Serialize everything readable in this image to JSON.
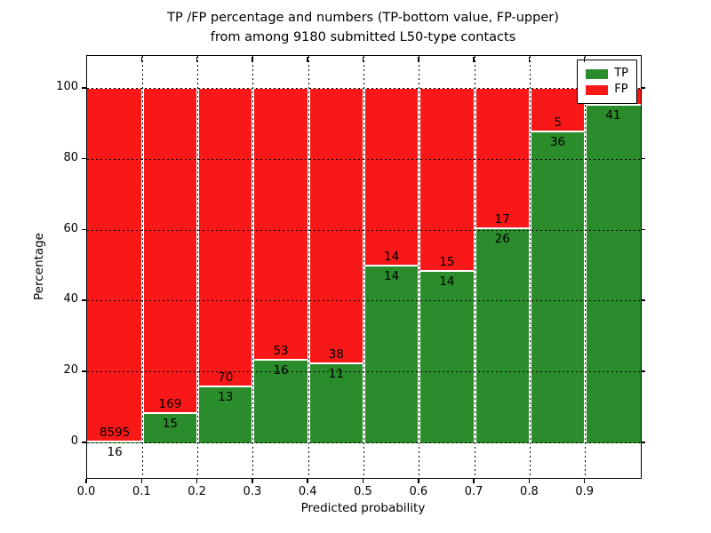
{
  "title": {
    "line1": "TP /FP percentage and numbers (TP-bottom value, FP-upper)",
    "line2": "from among 9180 submitted L50-type contacts"
  },
  "axes": {
    "xlabel": "Predicted probability",
    "ylabel": "Percentage",
    "x_ticks": [
      "0.0",
      "0.1",
      "0.2",
      "0.3",
      "0.4",
      "0.5",
      "0.6",
      "0.7",
      "0.8",
      "0.9"
    ],
    "y_ticks": [
      "0",
      "20",
      "40",
      "60",
      "80",
      "100"
    ]
  },
  "legend": {
    "items": [
      {
        "label": "TP",
        "color": "#2a8c2a"
      },
      {
        "label": "FP",
        "color": "#f81818"
      }
    ]
  },
  "colors": {
    "tp": "#2a8c2a",
    "fp": "#f81818",
    "grid": "#000000",
    "background": "#ffffff"
  },
  "bars": [
    {
      "bin": "0.0-0.1",
      "tp_label": "16",
      "fp_label": "8595",
      "tp_pct": 0.2
    },
    {
      "bin": "0.1-0.2",
      "tp_label": "15",
      "fp_label": "169",
      "tp_pct": 8.2
    },
    {
      "bin": "0.2-0.3",
      "tp_label": "13",
      "fp_label": "70",
      "tp_pct": 15.7
    },
    {
      "bin": "0.3-0.4",
      "tp_label": "16",
      "fp_label": "53",
      "tp_pct": 23.2
    },
    {
      "bin": "0.4-0.5",
      "tp_label": "11",
      "fp_label": "38",
      "tp_pct": 22.4
    },
    {
      "bin": "0.5-0.6",
      "tp_label": "14",
      "fp_label": "14",
      "tp_pct": 50.0
    },
    {
      "bin": "0.6-0.7",
      "tp_label": "14",
      "fp_label": "15",
      "tp_pct": 48.3
    },
    {
      "bin": "0.7-0.8",
      "tp_label": "26",
      "fp_label": "17",
      "tp_pct": 60.5
    },
    {
      "bin": "0.8-0.9",
      "tp_label": "36",
      "fp_label": "5",
      "tp_pct": 87.8
    },
    {
      "bin": "0.9-1.0",
      "tp_label": "41",
      "fp_label": "",
      "tp_pct": 95.3
    }
  ],
  "chart_data": {
    "type": "bar",
    "stacked": true,
    "normalized_to": 100,
    "title": "TP /FP percentage and numbers (TP-bottom value, FP-upper) from among 9180 submitted L50-type contacts",
    "xlabel": "Predicted probability",
    "ylabel": "Percentage",
    "bin_start": [
      0.0,
      0.1,
      0.2,
      0.3,
      0.4,
      0.5,
      0.6,
      0.7,
      0.8,
      0.9
    ],
    "bin_width": 0.1,
    "xlim": [
      0.0,
      1.0
    ],
    "ylim": [
      -10,
      109
    ],
    "grid": "dotted",
    "legend_position": "upper right",
    "series": [
      {
        "name": "TP",
        "color": "#2a8c2a",
        "count_labels": [
          "16",
          "15",
          "13",
          "16",
          "11",
          "14",
          "14",
          "26",
          "36",
          "41"
        ],
        "percent": [
          0.2,
          8.2,
          15.7,
          23.2,
          22.4,
          50.0,
          48.3,
          60.5,
          87.8,
          95.3
        ]
      },
      {
        "name": "FP",
        "color": "#f81818",
        "count_labels": [
          "8595",
          "169",
          "70",
          "53",
          "38",
          "14",
          "15",
          "17",
          "5",
          ""
        ],
        "percent": [
          99.8,
          91.8,
          84.3,
          76.8,
          77.6,
          50.0,
          51.7,
          39.5,
          12.2,
          4.7
        ]
      }
    ]
  }
}
